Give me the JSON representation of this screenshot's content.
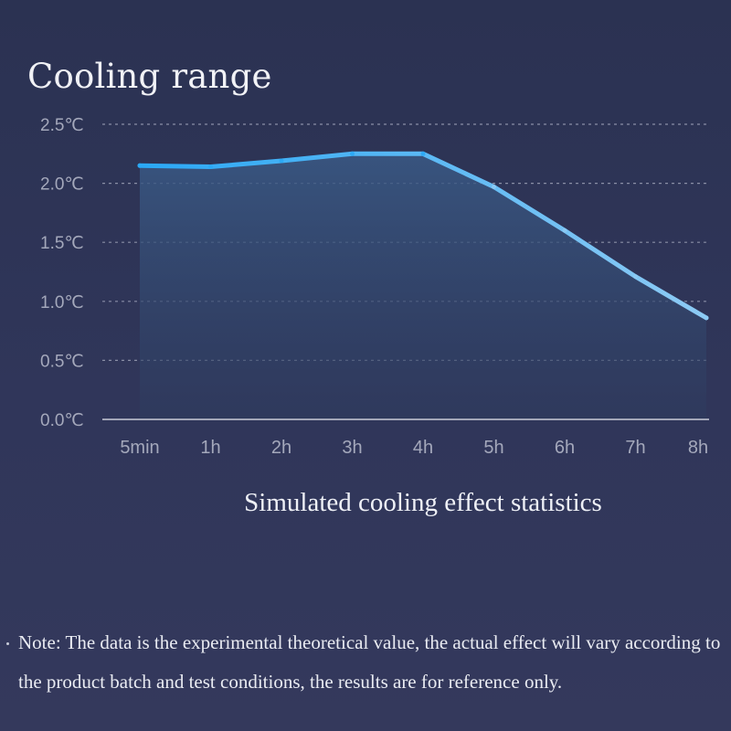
{
  "colors": {
    "background": "#2f3554",
    "line_start": "#2aa8f5",
    "line_end": "#8dcaf4",
    "grid": "#8a8fa6",
    "axis_text": "#a4a8bb",
    "text": "#eef0f6"
  },
  "chart_data": {
    "type": "area",
    "title": "Cooling range",
    "xlabel": "Simulated cooling effect statistics",
    "ylabel": "",
    "categories": [
      "5min",
      "1h",
      "2h",
      "3h",
      "4h",
      "5h",
      "6h",
      "7h",
      "8h"
    ],
    "values": [
      2.15,
      2.14,
      2.19,
      2.25,
      2.25,
      1.97,
      1.6,
      1.21,
      0.86
    ],
    "ylim": [
      0,
      2.5
    ],
    "y_ticks": [
      {
        "value": 0.0,
        "label": "0.0℃"
      },
      {
        "value": 0.5,
        "label": "0.5℃"
      },
      {
        "value": 1.0,
        "label": "1.0℃"
      },
      {
        "value": 1.5,
        "label": "1.5℃"
      },
      {
        "value": 2.0,
        "label": "2.0℃"
      },
      {
        "value": 2.5,
        "label": "2.5℃"
      }
    ],
    "grid": true,
    "legend": "none"
  },
  "note": "Note: The data is the experimental theoretical value, the actual effect will vary according to the product batch and test conditions, the results are for reference only."
}
